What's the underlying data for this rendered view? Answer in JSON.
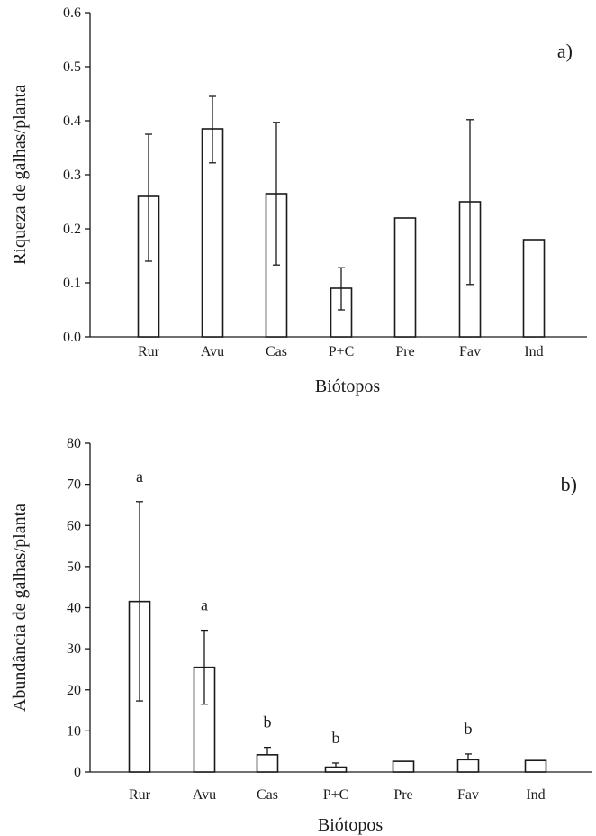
{
  "chart_data": [
    {
      "type": "bar",
      "panel_label": "a)",
      "categories": [
        "Rur",
        "Avu",
        "Cas",
        "P+C",
        "Pre",
        "Fav",
        "Ind"
      ],
      "values": [
        0.26,
        0.385,
        0.265,
        0.09,
        0.22,
        0.25,
        0.18
      ],
      "error_upper": [
        0.375,
        0.445,
        0.397,
        0.128,
        null,
        0.402,
        null
      ],
      "error_lower": [
        0.14,
        0.322,
        0.133,
        0.05,
        null,
        0.097,
        null
      ],
      "significance": [],
      "xlabel": "Biótopos",
      "ylabel": "Riqueza de galhas/planta",
      "ylim": [
        0,
        0.6
      ],
      "yticks": [
        "0.0",
        "0.1",
        "0.2",
        "0.3",
        "0.4",
        "0.5",
        "0.6"
      ],
      "grid": false,
      "legend": "none"
    },
    {
      "type": "bar",
      "panel_label": "b)",
      "categories": [
        "Rur",
        "Avu",
        "Cas",
        "P+C",
        "Pre",
        "Fav",
        "Ind"
      ],
      "values": [
        41.5,
        25.5,
        4.2,
        1.2,
        2.6,
        3.0,
        2.8
      ],
      "error_upper": [
        65.8,
        34.5,
        6.0,
        2.2,
        null,
        4.4,
        null
      ],
      "error_lower": [
        17.3,
        16.5,
        null,
        null,
        null,
        null,
        null
      ],
      "significance": [
        "a",
        "a",
        "b",
        "b",
        "",
        "b",
        ""
      ],
      "xlabel": "Biótopos",
      "ylabel": "Abundância de galhas/planta",
      "ylim": [
        0,
        80
      ],
      "yticks": [
        "0",
        "10",
        "20",
        "30",
        "40",
        "50",
        "60",
        "70",
        "80"
      ],
      "grid": false,
      "legend": "none"
    }
  ]
}
